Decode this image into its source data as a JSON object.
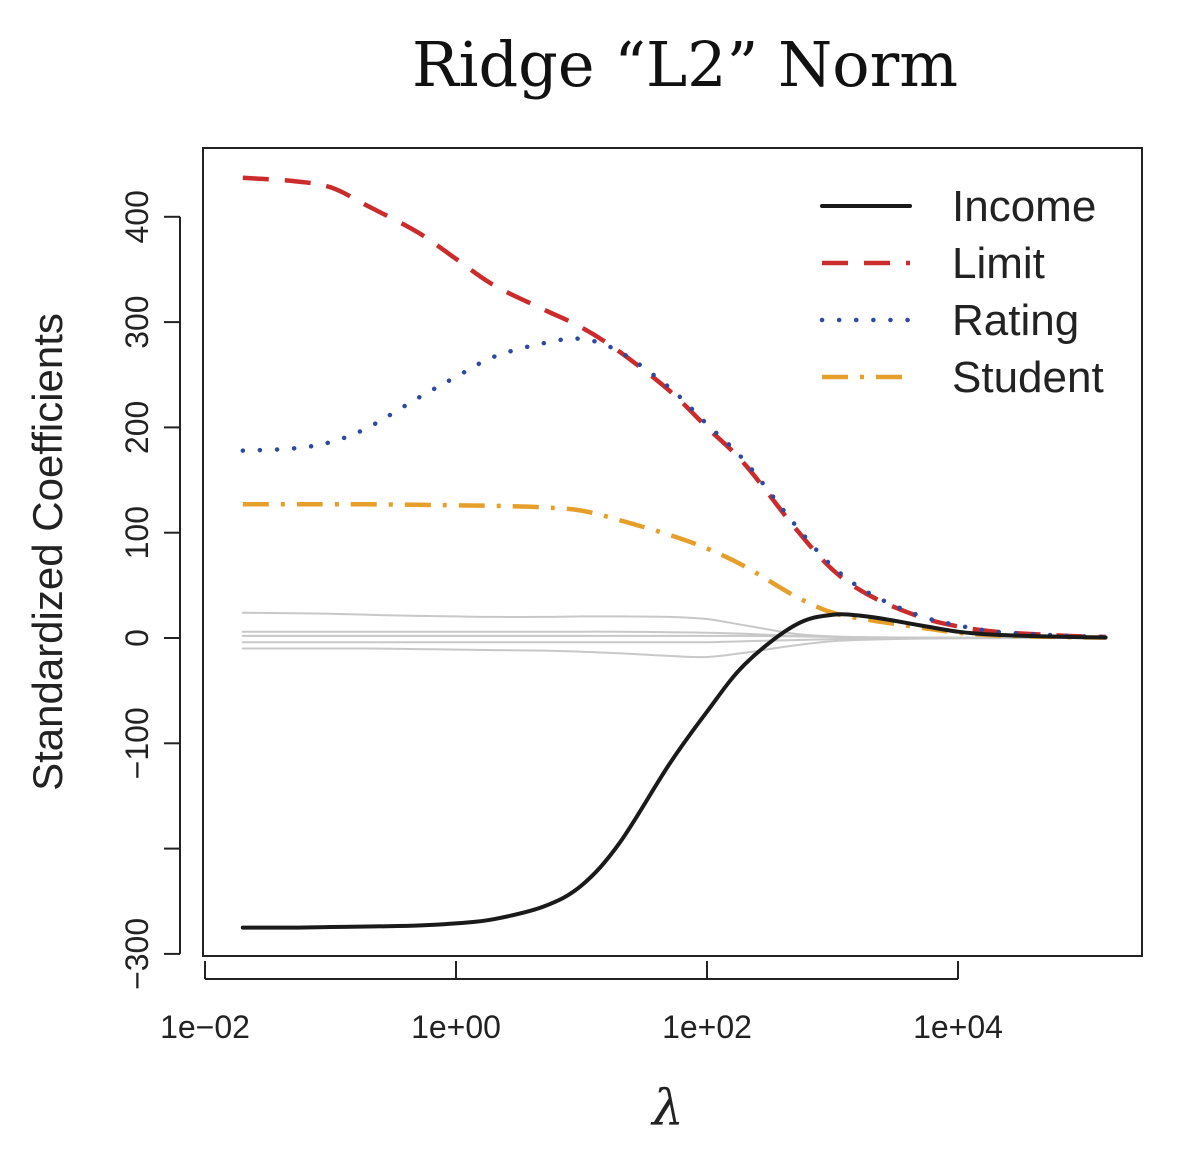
{
  "title": "Ridge “L2” Norm",
  "chart_data": {
    "type": "line",
    "xlabel": "λ",
    "ylabel": "Standardized Coefficients",
    "x_scale": "log",
    "xlim": [
      0.01,
      200000
    ],
    "ylim": [
      -300,
      450
    ],
    "xticks": [
      "1e−02",
      "1e+00",
      "1e+02",
      "1e+04"
    ],
    "xtick_values": [
      0.01,
      1,
      100,
      10000
    ],
    "yticks": [
      "−300",
      "",
      "−100",
      "0",
      "100",
      "200",
      "300",
      "400"
    ],
    "ytick_values": [
      -300,
      -200,
      -100,
      0,
      100,
      200,
      300,
      400
    ],
    "grid": false,
    "legend_position": "top-right",
    "x": [
      0.02,
      0.05,
      0.1,
      0.2,
      0.5,
      1,
      2,
      5,
      10,
      20,
      50,
      100,
      200,
      500,
      1000,
      2000,
      5000,
      10000,
      20000,
      50000,
      100000,
      150000
    ],
    "series": [
      {
        "name": "Income",
        "color": "#1a1a1a",
        "style": "solid",
        "values": [
          -275,
          -275,
          -274.5,
          -274,
          -273,
          -271,
          -267,
          -255,
          -235,
          -195,
          -120,
          -70,
          -25,
          12,
          22,
          20,
          12,
          6,
          3,
          1.5,
          0.8,
          0.5
        ]
      },
      {
        "name": "Limit",
        "color": "#cc2b2b",
        "style": "dashed",
        "values": [
          437,
          434,
          428,
          410,
          385,
          360,
          335,
          312,
          295,
          272,
          235,
          200,
          165,
          105,
          65,
          40,
          20,
          11,
          6,
          3,
          1.5,
          1
        ]
      },
      {
        "name": "Rating",
        "color": "#2e4a9e",
        "style": "dotted",
        "values": [
          178,
          180,
          186,
          200,
          228,
          248,
          267,
          280,
          284,
          272,
          238,
          203,
          168,
          108,
          68,
          42,
          21,
          12,
          6,
          3,
          1.5,
          1
        ]
      },
      {
        "name": "Student",
        "color": "#e69f2a",
        "style": "dashdot",
        "values": [
          127,
          127,
          127,
          127,
          126.5,
          126,
          125.5,
          124,
          121,
          112,
          98,
          85,
          68,
          40,
          24,
          17,
          10,
          5,
          2.5,
          1.2,
          0.6,
          0.4
        ]
      },
      {
        "color": "#c8c8c8",
        "style": "thin",
        "values": [
          24,
          23.5,
          23,
          22,
          21,
          20.5,
          20,
          20,
          20.5,
          20.5,
          20,
          18,
          12,
          4,
          1.5,
          0.8,
          0.4,
          0.2,
          0.1,
          0.1,
          0,
          0
        ]
      },
      {
        "color": "#c8c8c8",
        "style": "thin",
        "values": [
          6,
          6,
          6,
          6,
          6,
          6,
          6,
          6,
          6,
          6,
          5.5,
          5,
          4,
          2,
          1,
          0.5,
          0.3,
          0.2,
          0.1,
          0,
          0,
          0
        ]
      },
      {
        "color": "#c8c8c8",
        "style": "thin",
        "values": [
          2,
          2,
          2,
          2,
          2,
          2,
          2,
          2,
          2,
          2,
          2,
          2,
          2,
          1.5,
          1,
          0.6,
          0.3,
          0.2,
          0.1,
          0,
          0,
          0
        ]
      },
      {
        "color": "#c8c8c8",
        "style": "thin",
        "values": [
          -4,
          -4,
          -4,
          -4,
          -4,
          -4,
          -4,
          -4,
          -4,
          -4,
          -4,
          -4,
          -3,
          -2,
          -1,
          -0.5,
          -0.3,
          -0.2,
          -0.1,
          0,
          0,
          0
        ]
      },
      {
        "color": "#c8c8c8",
        "style": "thin",
        "values": [
          -10,
          -10,
          -10,
          -10,
          -10.5,
          -11,
          -11.5,
          -12,
          -13,
          -14.5,
          -17,
          -18,
          -14,
          -7,
          -3,
          -1.5,
          -0.6,
          -0.3,
          -0.1,
          0,
          0,
          0
        ]
      }
    ]
  }
}
